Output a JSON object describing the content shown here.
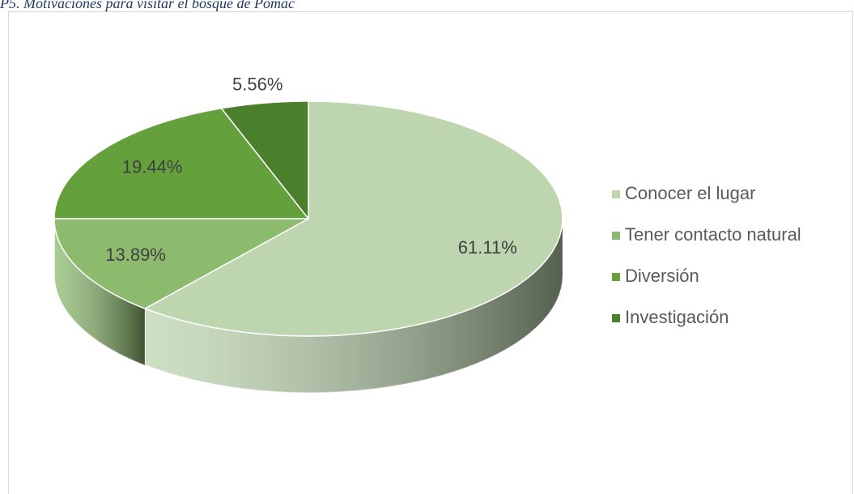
{
  "chart_data": {
    "type": "pie",
    "title": "P5. Motivaciones para visitar el bosque de Pomac",
    "categories": [
      "Conocer el lugar",
      "Tener contacto natural",
      "Diversión",
      "Investigación"
    ],
    "values": [
      61.11,
      13.89,
      19.44,
      5.56
    ],
    "value_labels": [
      "61.11%",
      "13.89%",
      "19.44%",
      "5.56%"
    ],
    "colors": [
      "#bdd6b0",
      "#8cbb6e",
      "#64a03c",
      "#4a7f2c"
    ],
    "legend": "right"
  }
}
